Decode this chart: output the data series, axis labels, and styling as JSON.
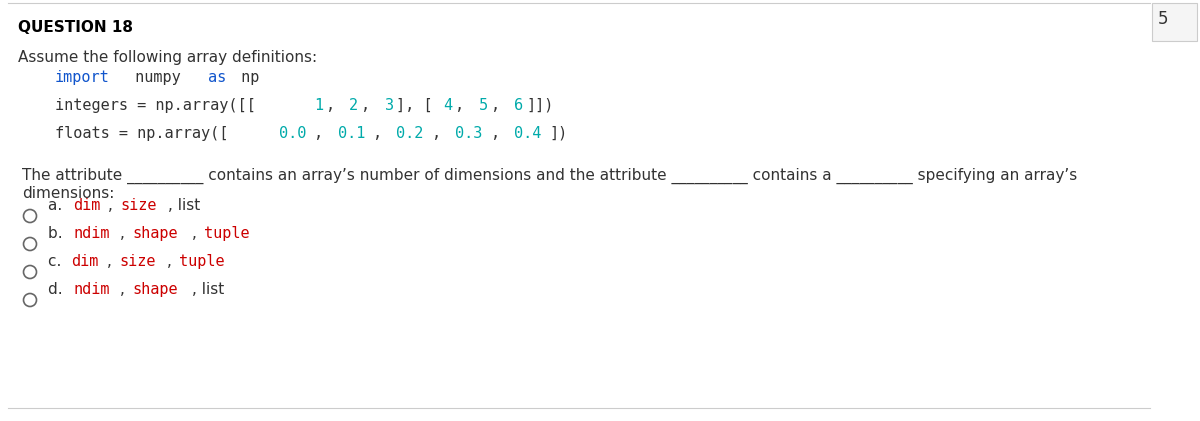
{
  "title": "QUESTION 18",
  "side_label": "5",
  "intro_text": "Assume the following array definitions:",
  "code_line1_parts": [
    {
      "t": "import",
      "color": "#1155cc"
    },
    {
      "t": " numpy ",
      "color": "#333333"
    },
    {
      "t": "as",
      "color": "#1155cc"
    },
    {
      "t": " np",
      "color": "#333333"
    }
  ],
  "code_line2_parts": [
    {
      "t": "integers = np.array([[",
      "color": "#333333"
    },
    {
      "t": "1",
      "color": "#00aaaa"
    },
    {
      "t": ", ",
      "color": "#333333"
    },
    {
      "t": "2",
      "color": "#00aaaa"
    },
    {
      "t": ", ",
      "color": "#333333"
    },
    {
      "t": "3",
      "color": "#00aaaa"
    },
    {
      "t": "], [",
      "color": "#333333"
    },
    {
      "t": "4",
      "color": "#00aaaa"
    },
    {
      "t": ", ",
      "color": "#333333"
    },
    {
      "t": "5",
      "color": "#00aaaa"
    },
    {
      "t": ", ",
      "color": "#333333"
    },
    {
      "t": "6",
      "color": "#00aaaa"
    },
    {
      "t": "]])",
      "color": "#333333"
    }
  ],
  "code_line3_parts": [
    {
      "t": "floats = np.array([",
      "color": "#333333"
    },
    {
      "t": "0.0",
      "color": "#00aaaa"
    },
    {
      "t": ", ",
      "color": "#333333"
    },
    {
      "t": "0.1",
      "color": "#00aaaa"
    },
    {
      "t": ", ",
      "color": "#333333"
    },
    {
      "t": "0.2",
      "color": "#00aaaa"
    },
    {
      "t": ", ",
      "color": "#333333"
    },
    {
      "t": "0.3",
      "color": "#00aaaa"
    },
    {
      "t": ", ",
      "color": "#333333"
    },
    {
      "t": "0.4",
      "color": "#00aaaa"
    },
    {
      "t": "])",
      "color": "#333333"
    }
  ],
  "question_line1": "The attribute __________ contains an array’s number of dimensions and the attribute __________ contains a __________ specifying an array’s",
  "question_line2": "dimensions:",
  "option_parts": [
    [
      {
        "t": "a. ",
        "color": "#333333",
        "font": "sans"
      },
      {
        "t": "dim",
        "color": "#cc0000",
        "font": "mono"
      },
      {
        "t": ", ",
        "color": "#333333",
        "font": "sans"
      },
      {
        "t": "size",
        "color": "#cc0000",
        "font": "mono"
      },
      {
        "t": ", list",
        "color": "#333333",
        "font": "sans"
      }
    ],
    [
      {
        "t": "b. ",
        "color": "#333333",
        "font": "sans"
      },
      {
        "t": "ndim",
        "color": "#cc0000",
        "font": "mono"
      },
      {
        "t": ", ",
        "color": "#333333",
        "font": "sans"
      },
      {
        "t": "shape",
        "color": "#cc0000",
        "font": "mono"
      },
      {
        "t": ", ",
        "color": "#333333",
        "font": "sans"
      },
      {
        "t": "tuple",
        "color": "#cc0000",
        "font": "mono"
      }
    ],
    [
      {
        "t": "c. ",
        "color": "#333333",
        "font": "sans"
      },
      {
        "t": "dim",
        "color": "#cc0000",
        "font": "mono"
      },
      {
        "t": ", ",
        "color": "#333333",
        "font": "sans"
      },
      {
        "t": "size",
        "color": "#cc0000",
        "font": "mono"
      },
      {
        "t": ", ",
        "color": "#333333",
        "font": "sans"
      },
      {
        "t": "tuple",
        "color": "#cc0000",
        "font": "mono"
      }
    ],
    [
      {
        "t": "d. ",
        "color": "#333333",
        "font": "sans"
      },
      {
        "t": "ndim",
        "color": "#cc0000",
        "font": "mono"
      },
      {
        "t": ", ",
        "color": "#333333",
        "font": "sans"
      },
      {
        "t": "shape",
        "color": "#cc0000",
        "font": "mono"
      },
      {
        "t": ", list",
        "color": "#333333",
        "font": "sans"
      }
    ]
  ],
  "bg_color": "#ffffff",
  "text_color": "#333333",
  "title_color": "#000000",
  "border_color": "#cccccc",
  "circle_color": "#666666"
}
